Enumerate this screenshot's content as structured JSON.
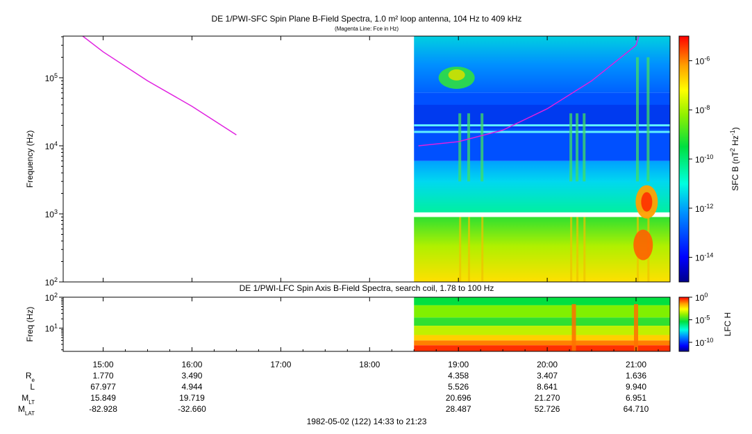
{
  "chart_data": [
    {
      "type": "heatmap",
      "title": "DE 1/PWI-SFC  Spin Plane B-Field Spectra, 1.0 m² loop antenna, 104 Hz to 409 kHz",
      "subtitle": "(Magenta Line: Fce in Hz)",
      "ylabel": "Frequency (Hz)",
      "ylim": [
        100,
        409000
      ],
      "yscale": "log",
      "y_ticks": [
        {
          "value": 100,
          "base": "10",
          "exp": "2"
        },
        {
          "value": 1000,
          "base": "10",
          "exp": "3"
        },
        {
          "value": 10000,
          "base": "10",
          "exp": "4"
        },
        {
          "value": 100000,
          "base": "10",
          "exp": "5"
        }
      ],
      "xlim_hours": [
        14.55,
        21.383
      ],
      "data_start_hours": 18.5,
      "colorbar": {
        "label_parts": [
          "SFC B (nT",
          "2",
          " Hz",
          "-1",
          ")"
        ],
        "scale": "log",
        "range": [
          1e-15,
          1e-05
        ],
        "ticks": [
          {
            "value": 1e-06,
            "base": "10",
            "exp": "-6"
          },
          {
            "value": 1e-08,
            "base": "10",
            "exp": "-8"
          },
          {
            "value": 1e-10,
            "base": "10",
            "exp": "-10"
          },
          {
            "value": 1e-12,
            "base": "10",
            "exp": "-12"
          },
          {
            "value": 1e-14,
            "base": "10",
            "exp": "-14"
          }
        ]
      },
      "fce_line": {
        "color": "#e020e0",
        "segments": [
          {
            "t": [
              14.77,
              15.0,
              15.5,
              16.0,
              16.5
            ],
            "f": [
              409000,
              240000,
              90000,
              38000,
              14500
            ]
          },
          {
            "t": [
              18.55,
              19.0,
              19.5,
              20.0,
              20.5,
              21.0,
              21.03
            ],
            "f": [
              10000,
              11500,
              17000,
              35000,
              90000,
              300000,
              409000
            ]
          }
        ]
      }
    },
    {
      "type": "heatmap",
      "title": "DE 1/PWI-LFC  Spin Axis B-Field Spectra, search coil, 1.78 to 100 Hz",
      "ylabel": "Freq (Hz)",
      "ylim": [
        1.78,
        100
      ],
      "yscale": "log",
      "y_ticks": [
        {
          "value": 10,
          "base": "10",
          "exp": "1"
        },
        {
          "value": 100,
          "base": "10",
          "exp": "2"
        }
      ],
      "xlim_hours": [
        14.55,
        21.383
      ],
      "data_start_hours": 18.5,
      "colorbar": {
        "label": "LFC H",
        "scale": "log",
        "range": [
          1e-12,
          1
        ],
        "ticks": [
          {
            "value": 1,
            "base": "10",
            "exp": "0"
          },
          {
            "value": 1e-05,
            "base": "10",
            "exp": "-5"
          },
          {
            "value": 1e-10,
            "base": "10",
            "exp": "-10"
          }
        ]
      }
    }
  ],
  "x_axis": {
    "ticks": [
      {
        "hour": 15,
        "label": "15:00"
      },
      {
        "hour": 16,
        "label": "16:00"
      },
      {
        "hour": 17,
        "label": "17:00"
      },
      {
        "hour": 18,
        "label": "18:00"
      },
      {
        "hour": 19,
        "label": "19:00"
      },
      {
        "hour": 20,
        "label": "20:00"
      },
      {
        "hour": 21,
        "label": "21:00"
      }
    ],
    "date_label": "1982-05-02 (122) 14:33 to 21:23"
  },
  "ephemeris": {
    "rows": [
      {
        "label": "R",
        "sub": "e",
        "values": [
          "1.770",
          "3.490",
          "",
          "",
          "4.358",
          "3.407",
          "1.636"
        ]
      },
      {
        "label": "L",
        "sub": "",
        "values": [
          "67.977",
          "4.944",
          "",
          "",
          "5.526",
          "8.641",
          "9.940"
        ]
      },
      {
        "label": "M",
        "sub": "LT",
        "values": [
          "15.849",
          "19.719",
          "",
          "",
          "20.696",
          "21.270",
          "6.951"
        ]
      },
      {
        "label": "M",
        "sub": "LAT",
        "values": [
          "-82.928",
          "-32.660",
          "",
          "",
          "28.487",
          "52.726",
          "64.710"
        ]
      }
    ]
  }
}
